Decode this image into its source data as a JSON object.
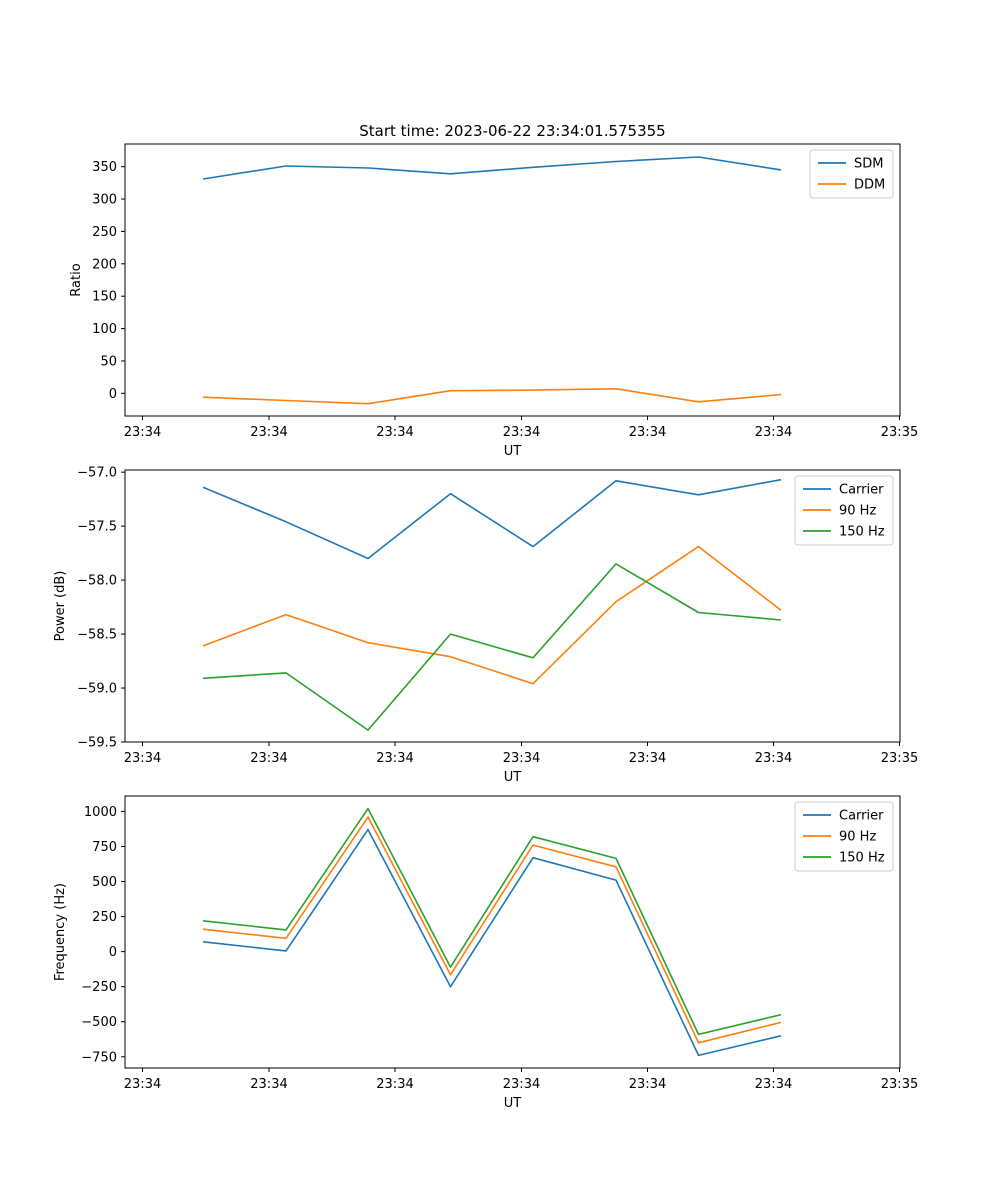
{
  "figure": {
    "title": "Start time: 2023-06-22 23:34:01.575355"
  },
  "chart_data": [
    {
      "type": "line",
      "title": "Start time: 2023-06-22 23:34:01.575355",
      "xlabel": "UT",
      "ylabel": "Ratio",
      "x": [
        1,
        2,
        3,
        4,
        5,
        6,
        7,
        8
      ],
      "x_tick_labels": [
        "23:34",
        "23:34",
        "23:34",
        "23:34",
        "23:34",
        "23:34",
        "23:35"
      ],
      "y_ticks": [
        0,
        50,
        100,
        150,
        200,
        250,
        300,
        350
      ],
      "ylim": [
        -35,
        385
      ],
      "legend_position": "top-right",
      "grid": false,
      "series": [
        {
          "name": "SDM",
          "color": "#1f77b4",
          "values": [
            331,
            351,
            348,
            339,
            349,
            358,
            365,
            345
          ]
        },
        {
          "name": "DDM",
          "color": "#ff7f0e",
          "values": [
            -6,
            -11,
            -16,
            4,
            5,
            7,
            -13,
            -2
          ]
        }
      ]
    },
    {
      "type": "line",
      "xlabel": "UT",
      "ylabel": "Power (dB)",
      "x": [
        1,
        2,
        3,
        4,
        5,
        6,
        7,
        8
      ],
      "x_tick_labels": [
        "23:34",
        "23:34",
        "23:34",
        "23:34",
        "23:34",
        "23:34",
        "23:35"
      ],
      "y_ticks": [
        -57.0,
        -57.5,
        -58.0,
        -58.5,
        -59.0,
        -59.5
      ],
      "ylim": [
        -59.5,
        -56.98
      ],
      "legend_position": "top-right",
      "grid": false,
      "series": [
        {
          "name": "Carrier",
          "color": "#1f77b4",
          "values": [
            -57.14,
            -57.46,
            -57.8,
            -57.2,
            -57.69,
            -57.08,
            -57.21,
            -57.07
          ]
        },
        {
          "name": "90 Hz",
          "color": "#ff7f0e",
          "values": [
            -58.61,
            -58.32,
            -58.58,
            -58.71,
            -58.96,
            -58.2,
            -57.69,
            -58.28
          ]
        },
        {
          "name": "150 Hz",
          "color": "#2ca02c",
          "values": [
            -58.91,
            -58.86,
            -59.39,
            -58.5,
            -58.72,
            -57.85,
            -58.3,
            -58.37
          ]
        }
      ]
    },
    {
      "type": "line",
      "xlabel": "UT",
      "ylabel": "Frequency (Hz)",
      "x": [
        1,
        2,
        3,
        4,
        5,
        6,
        7,
        8
      ],
      "x_tick_labels": [
        "23:34",
        "23:34",
        "23:34",
        "23:34",
        "23:34",
        "23:34",
        "23:35"
      ],
      "y_ticks": [
        1000,
        750,
        500,
        250,
        0,
        -250,
        -500,
        -750
      ],
      "ylim": [
        -830,
        1110
      ],
      "legend_position": "top-right",
      "grid": false,
      "series": [
        {
          "name": "Carrier",
          "color": "#1f77b4",
          "values": [
            70,
            5,
            870,
            -250,
            670,
            510,
            -740,
            -600
          ]
        },
        {
          "name": "90 Hz",
          "color": "#ff7f0e",
          "values": [
            160,
            95,
            960,
            -165,
            760,
            605,
            -650,
            -505
          ]
        },
        {
          "name": "150 Hz",
          "color": "#2ca02c",
          "values": [
            220,
            155,
            1020,
            -110,
            820,
            665,
            -590,
            -450
          ]
        }
      ]
    }
  ]
}
